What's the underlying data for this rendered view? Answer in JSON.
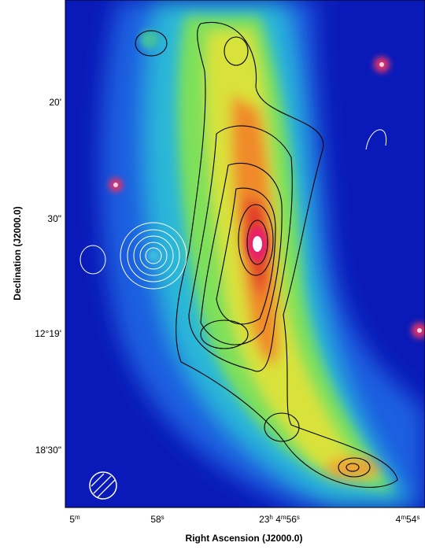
{
  "figure": {
    "x_axis": {
      "label": "Right Ascension (J2000.0)",
      "ticks": [
        [
          {
            "base": "5"
          },
          {
            "sup": "m"
          }
        ],
        [
          {
            "base": "58"
          },
          {
            "sup": "s"
          }
        ],
        [
          {
            "base": "23"
          },
          {
            "sup": "h"
          },
          {
            "base": " 4"
          },
          {
            "sup": "m"
          },
          {
            "base": "56"
          },
          {
            "sup": "s"
          }
        ],
        [
          {
            "base": "4"
          },
          {
            "sup": "m"
          },
          {
            "base": "54"
          },
          {
            "sup": "s"
          }
        ]
      ]
    },
    "y_axis": {
      "label": "Declination (J2000.0)",
      "ticks": [
        [
          {
            "base": "20'"
          }
        ],
        [
          {
            "base": "30\""
          }
        ],
        [
          {
            "base": "12°19'"
          }
        ],
        [
          {
            "base": "18'30\""
          }
        ]
      ]
    }
  }
}
